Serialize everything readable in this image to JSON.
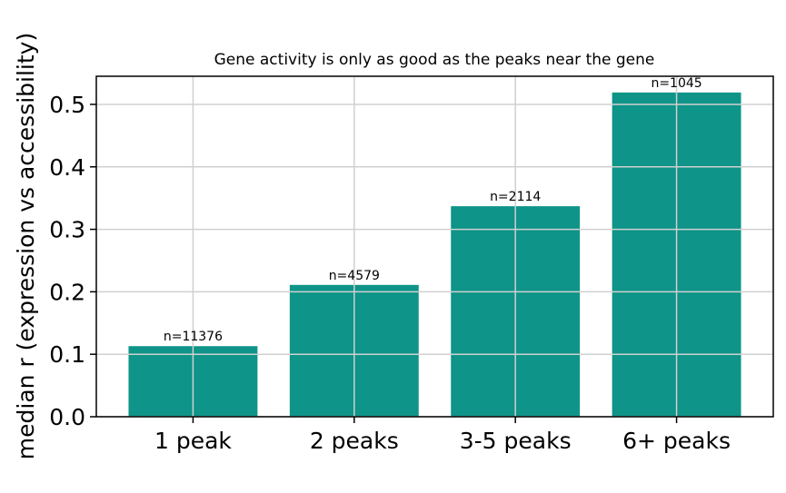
{
  "chart_data": {
    "type": "bar",
    "title": "Gene activity is only as good as the peaks near the gene",
    "xlabel": "",
    "ylabel": "median r (expression vs accessibility)",
    "categories": [
      "1 peak",
      "2 peaks",
      "3-5 peaks",
      "6+ peaks"
    ],
    "values": [
      0.113,
      0.211,
      0.337,
      0.519
    ],
    "data_labels": [
      "n=11376",
      "n=4579",
      "n=2114",
      "n=1045"
    ],
    "ylim": [
      0,
      0.545
    ],
    "yticks": [
      0.0,
      0.1,
      0.2,
      0.3,
      0.4,
      0.5
    ],
    "ytick_labels": [
      "0.0",
      "0.1",
      "0.2",
      "0.3",
      "0.4",
      "0.5"
    ],
    "grid": true,
    "bar_color": "#0e9488",
    "grid_color": "#d0d0d0"
  }
}
